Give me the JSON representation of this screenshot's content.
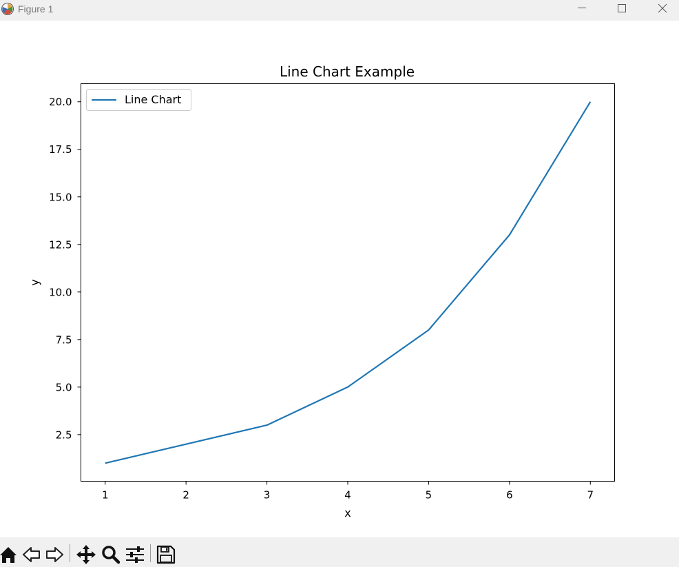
{
  "window": {
    "title": "Figure 1",
    "controls": [
      {
        "name": "minimize-button",
        "icon": "minimize-icon"
      },
      {
        "name": "maximize-button",
        "icon": "maximize-icon"
      },
      {
        "name": "close-button",
        "icon": "close-icon"
      }
    ]
  },
  "toolbar": {
    "buttons": [
      {
        "name": "home-button",
        "icon": "home-icon"
      },
      {
        "name": "back-button",
        "icon": "back-arrow-icon"
      },
      {
        "name": "forward-button",
        "icon": "forward-arrow-icon"
      },
      {
        "name": "pan-button",
        "icon": "move-icon"
      },
      {
        "name": "zoom-button",
        "icon": "magnifier-icon"
      },
      {
        "name": "configure-subplots-button",
        "icon": "sliders-icon"
      },
      {
        "name": "save-button",
        "icon": "floppy-disk-icon"
      }
    ]
  },
  "chart_data": {
    "type": "line",
    "title": "Line Chart Example",
    "xlabel": "x",
    "ylabel": "y",
    "x": [
      1,
      2,
      3,
      4,
      5,
      6,
      7
    ],
    "series": [
      {
        "name": "Line Chart",
        "values": [
          1,
          2,
          3,
          5,
          8,
          13,
          20
        ],
        "color": "#1f77b4"
      }
    ],
    "xlim": [
      0.7,
      7.3
    ],
    "ylim": [
      0.05,
      20.95
    ],
    "xticks": [
      1,
      2,
      3,
      4,
      5,
      6,
      7
    ],
    "xtick_labels": [
      "1",
      "2",
      "3",
      "4",
      "5",
      "6",
      "7"
    ],
    "yticks": [
      2.5,
      5.0,
      7.5,
      10.0,
      12.5,
      15.0,
      17.5,
      20.0
    ],
    "ytick_labels": [
      "2.5",
      "5.0",
      "7.5",
      "10.0",
      "12.5",
      "15.0",
      "17.5",
      "20.0"
    ],
    "grid": false,
    "legend_position": "upper left"
  }
}
